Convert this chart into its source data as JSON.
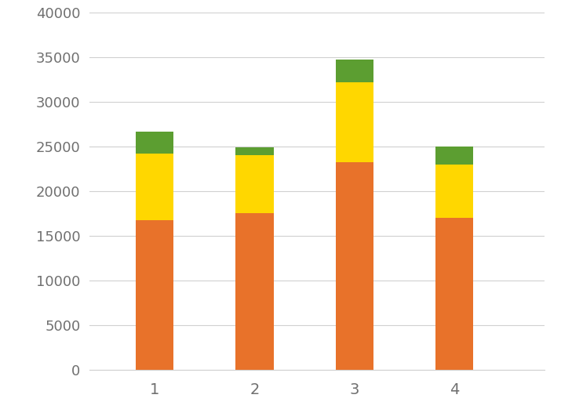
{
  "categories": [
    1,
    2,
    3,
    4
  ],
  "orange": [
    16700,
    17500,
    23200,
    17000
  ],
  "yellow": [
    7500,
    6500,
    9000,
    6000
  ],
  "green": [
    2500,
    900,
    2500,
    2000
  ],
  "orange_color": "#E8722A",
  "yellow_color": "#FFD700",
  "green_color": "#5C9E31",
  "background_color": "#FFFFFF",
  "ylim": [
    0,
    40000
  ],
  "yticks": [
    0,
    5000,
    10000,
    15000,
    20000,
    25000,
    30000,
    35000,
    40000
  ],
  "bar_width": 0.38,
  "xlim": [
    0.35,
    4.9
  ],
  "figsize": [
    7.15,
    5.36
  ],
  "dpi": 100
}
